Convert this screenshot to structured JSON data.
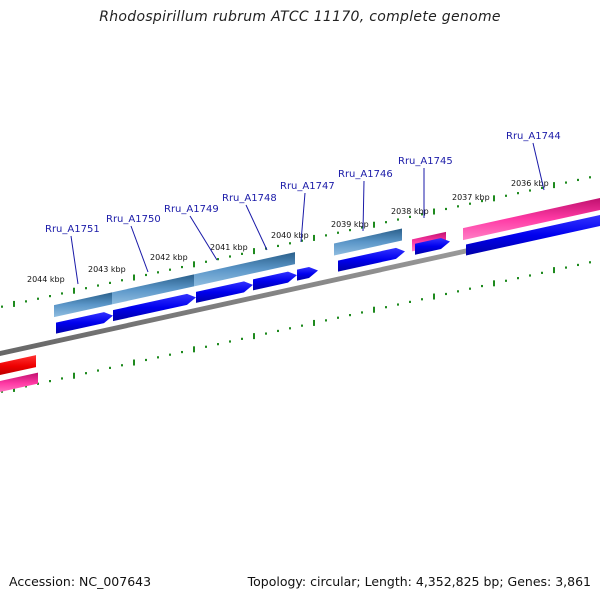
{
  "title": "Rhodospirillum rubrum ATCC 11170, complete genome",
  "footer": {
    "accession": "Accession: NC_007643",
    "topology": "Topology: circular; Length: 4,352,825 bp; Genes: 3,861"
  },
  "kbp_labels": [
    "2044 kbp",
    "2043 kbp",
    "2042 kbp",
    "2041 kbp",
    "2040 kbp",
    "2039 kbp",
    "2038 kbp",
    "2037 kbp",
    "2036 kbp"
  ],
  "gene_labels": [
    "Rru_A1751",
    "Rru_A1750",
    "Rru_A1749",
    "Rru_A1748",
    "Rru_A1747",
    "Rru_A1746",
    "Rru_A1745",
    "Rru_A1744"
  ],
  "colors": {
    "backbone": "#808080",
    "tick": "#1e8a1e",
    "cds": "#0000ee",
    "gene_forward": "#4682b4",
    "gene_pink": "#ff1493",
    "gene_red": "#ee0000",
    "label_line": "#1a1aa8"
  }
}
